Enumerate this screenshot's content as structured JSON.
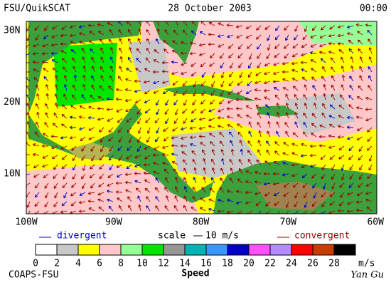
{
  "header": {
    "title": "FSU/QuikSCAT",
    "date": "28 October 2003",
    "time": "00:00"
  },
  "map": {
    "lat_labels": [
      "30N",
      "20N",
      "10N"
    ],
    "lon_labels": [
      "100W",
      "90W",
      "80W",
      "70W",
      "60W"
    ]
  },
  "legend": {
    "divergent": "divergent",
    "scale": "scale",
    "scale_value": "10 m/s",
    "convergent": "convergent"
  },
  "colorbar": {
    "labels": [
      0,
      2,
      4,
      6,
      8,
      10,
      12,
      14,
      16,
      18,
      20,
      22,
      24,
      26,
      28
    ],
    "unit": "m/s",
    "title": "Speed",
    "colors": [
      "#ffffff",
      "#c8c8c8",
      "#ffff00",
      "#ffc8c8",
      "#96ff96",
      "#00e600",
      "#969696",
      "#00b4b4",
      "#3c96ff",
      "#0000c8",
      "#ff50ff",
      "#b48cff",
      "#ff0000",
      "#c83c00",
      "#000000"
    ]
  },
  "footer": {
    "credit": "COAPS-FSU",
    "author": "Yan Gu"
  }
}
